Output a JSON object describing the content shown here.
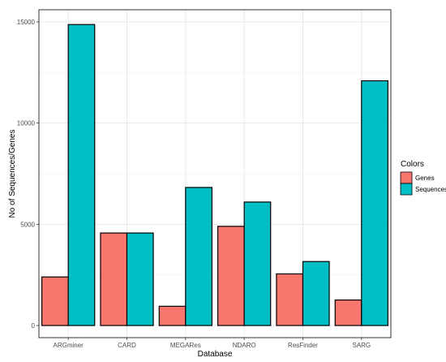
{
  "chart_data": {
    "type": "bar",
    "title": "",
    "xlabel": "Database",
    "ylabel": "No of Sequences/Genes",
    "categories": [
      "ARGminer",
      "CARD",
      "MEGARes",
      "NDARO",
      "ResFinder",
      "SARG"
    ],
    "series": [
      {
        "name": "Genes",
        "color": "#F8766D",
        "values": [
          2400,
          4570,
          950,
          4900,
          2550,
          1260
        ]
      },
      {
        "name": "Sequences",
        "color": "#00BFC4",
        "values": [
          14870,
          4570,
          6820,
          6100,
          3160,
          12090
        ]
      }
    ],
    "ylim": [
      -600,
      15600
    ],
    "yticks": [
      0,
      5000,
      10000,
      15000
    ],
    "ytick_labels": [
      "0",
      "5000",
      "10000",
      "15000"
    ],
    "grid": true,
    "legend": {
      "title": "Colors",
      "position": "right"
    }
  }
}
